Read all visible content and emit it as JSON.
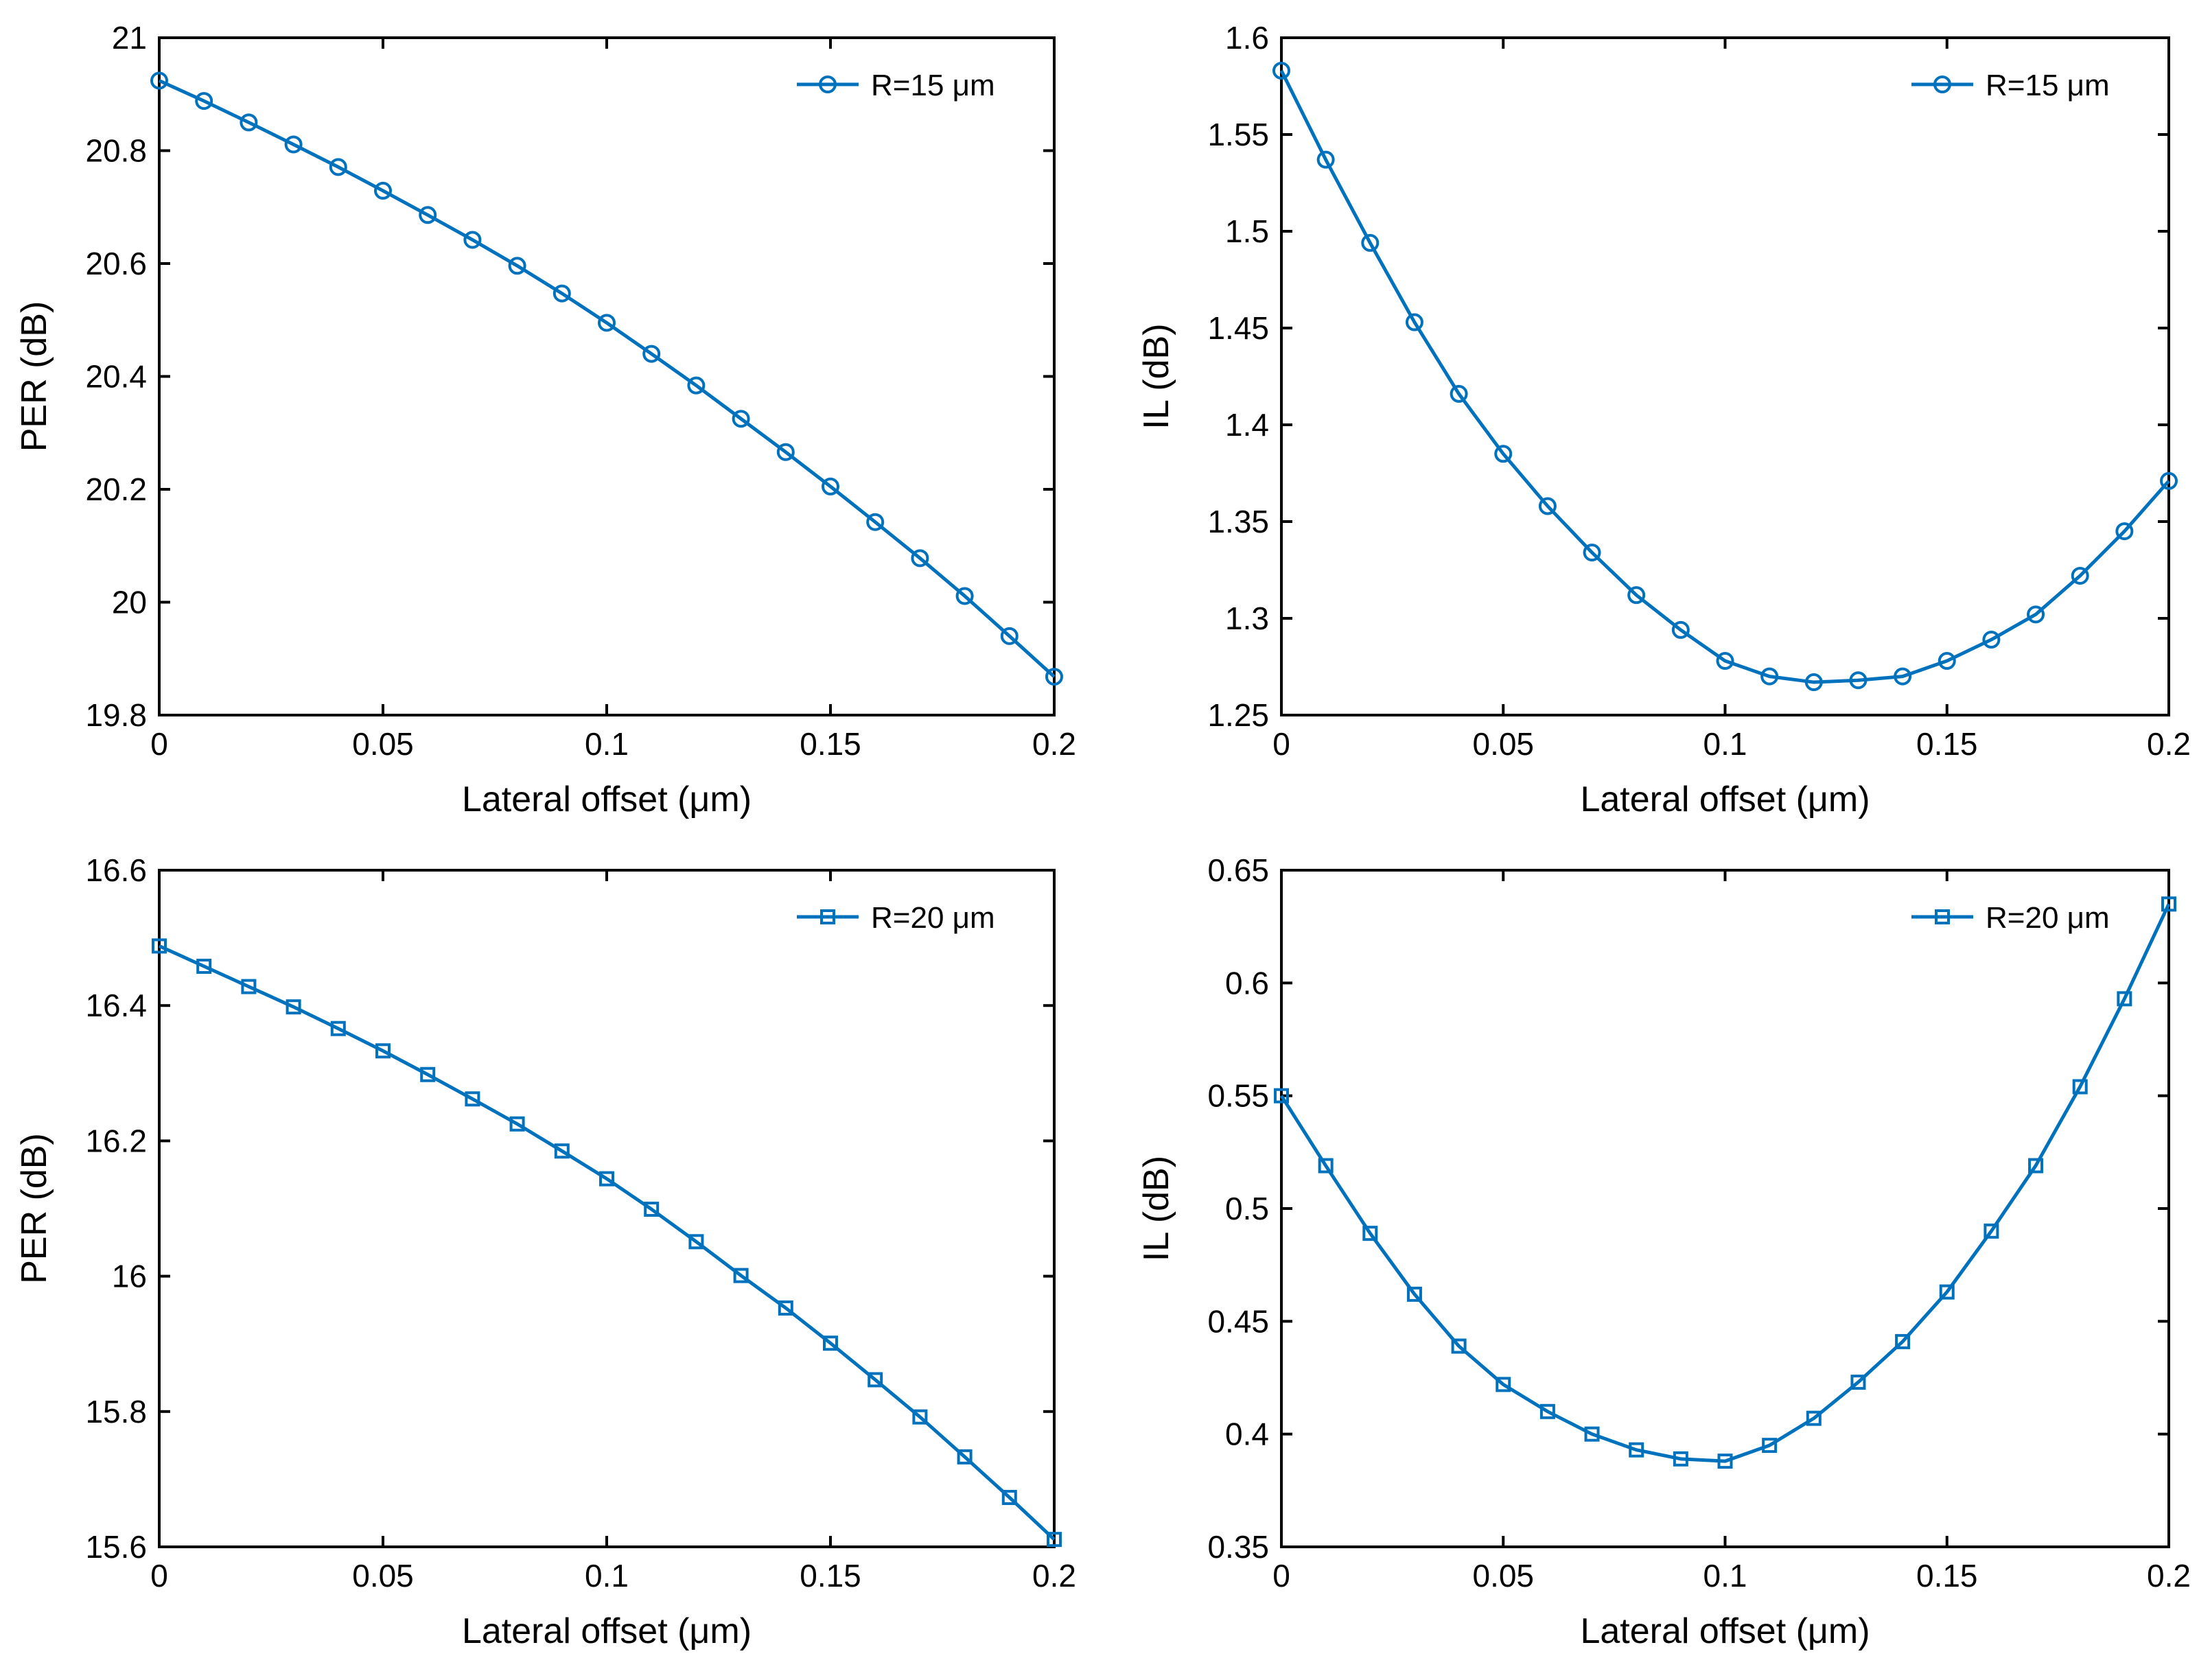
{
  "figure_title": "",
  "colors": {
    "series": "#0072BD",
    "axes": "#000000",
    "background": "#ffffff"
  },
  "chart_data": [
    {
      "type": "line",
      "marker": "circle",
      "xlabel": "Lateral offset (μm)",
      "ylabel": "PER (dB)",
      "xlim": [
        0,
        0.2
      ],
      "ylim": [
        19.8,
        21
      ],
      "xticks": [
        0,
        0.05,
        0.1,
        0.15,
        0.2
      ],
      "xtick_labels": [
        "0",
        "0.05",
        "0.1",
        "0.15",
        "0.2"
      ],
      "yticks": [
        19.8,
        20,
        20.2,
        20.4,
        20.6,
        20.8,
        21
      ],
      "ytick_labels": [
        "19.8",
        "20",
        "20.2",
        "20.4",
        "20.6",
        "20.8",
        "21"
      ],
      "legend": "top-right",
      "series": [
        {
          "name": "R=15 μm",
          "x": [
            0,
            0.01,
            0.02,
            0.03,
            0.04,
            0.05,
            0.06,
            0.07,
            0.08,
            0.09,
            0.1,
            0.11,
            0.12,
            0.13,
            0.14,
            0.15,
            0.16,
            0.17,
            0.18,
            0.19,
            0.2
          ],
          "y": [
            20.924,
            20.888,
            20.85,
            20.811,
            20.771,
            20.729,
            20.686,
            20.642,
            20.596,
            20.547,
            20.495,
            20.44,
            20.384,
            20.325,
            20.266,
            20.205,
            20.142,
            20.078,
            20.011,
            19.94,
            19.868
          ]
        }
      ]
    },
    {
      "type": "line",
      "marker": "circle",
      "xlabel": "Lateral offset (μm)",
      "ylabel": "IL (dB)",
      "xlim": [
        0,
        0.2
      ],
      "ylim": [
        1.25,
        1.6
      ],
      "xticks": [
        0,
        0.05,
        0.1,
        0.15,
        0.2
      ],
      "xtick_labels": [
        "0",
        "0.05",
        "0.1",
        "0.15",
        "0.2"
      ],
      "yticks": [
        1.25,
        1.3,
        1.35,
        1.4,
        1.45,
        1.5,
        1.55,
        1.6
      ],
      "ytick_labels": [
        "1.25",
        "1.3",
        "1.35",
        "1.4",
        "1.45",
        "1.5",
        "1.55",
        "1.6"
      ],
      "legend": "top-right",
      "series": [
        {
          "name": "R=15 μm",
          "x": [
            0,
            0.01,
            0.02,
            0.03,
            0.04,
            0.05,
            0.06,
            0.07,
            0.08,
            0.09,
            0.1,
            0.11,
            0.12,
            0.13,
            0.14,
            0.15,
            0.16,
            0.17,
            0.18,
            0.19,
            0.2
          ],
          "y": [
            1.583,
            1.537,
            1.494,
            1.453,
            1.416,
            1.385,
            1.358,
            1.334,
            1.312,
            1.294,
            1.278,
            1.27,
            1.267,
            1.268,
            1.27,
            1.278,
            1.289,
            1.302,
            1.322,
            1.345,
            1.371
          ]
        }
      ]
    },
    {
      "type": "line",
      "marker": "square",
      "xlabel": "Lateral offset (μm)",
      "ylabel": "PER (dB)",
      "xlim": [
        0,
        0.2
      ],
      "ylim": [
        15.6,
        16.6
      ],
      "xticks": [
        0,
        0.05,
        0.1,
        0.15,
        0.2
      ],
      "xtick_labels": [
        "0",
        "0.05",
        "0.1",
        "0.15",
        "0.2"
      ],
      "yticks": [
        15.6,
        15.8,
        16,
        16.2,
        16.4,
        16.6
      ],
      "ytick_labels": [
        "15.6",
        "15.8",
        "16",
        "16.2",
        "16.4",
        "16.6"
      ],
      "legend": "top-right",
      "series": [
        {
          "name": "R=20 μm",
          "x": [
            0,
            0.01,
            0.02,
            0.03,
            0.04,
            0.05,
            0.06,
            0.07,
            0.08,
            0.09,
            0.1,
            0.11,
            0.12,
            0.13,
            0.14,
            0.15,
            0.16,
            0.17,
            0.18,
            0.19,
            0.2
          ],
          "y": [
            16.488,
            16.458,
            16.428,
            16.398,
            16.366,
            16.333,
            16.298,
            16.262,
            16.225,
            16.185,
            16.144,
            16.099,
            16.051,
            16.001,
            15.953,
            15.901,
            15.847,
            15.792,
            15.733,
            15.673,
            15.611
          ]
        }
      ]
    },
    {
      "type": "line",
      "marker": "square",
      "xlabel": "Lateral offset (μm)",
      "ylabel": "IL (dB)",
      "xlim": [
        0,
        0.2
      ],
      "ylim": [
        0.35,
        0.65
      ],
      "xticks": [
        0,
        0.05,
        0.1,
        0.15,
        0.2
      ],
      "xtick_labels": [
        "0",
        "0.05",
        "0.1",
        "0.15",
        "0.2"
      ],
      "yticks": [
        0.35,
        0.4,
        0.45,
        0.5,
        0.55,
        0.6,
        0.65
      ],
      "ytick_labels": [
        "0.35",
        "0.4",
        "0.45",
        "0.5",
        "0.55",
        "0.6",
        "0.65"
      ],
      "legend": "top-right",
      "series": [
        {
          "name": "R=20 μm",
          "x": [
            0,
            0.01,
            0.02,
            0.03,
            0.04,
            0.05,
            0.06,
            0.07,
            0.08,
            0.09,
            0.1,
            0.11,
            0.12,
            0.13,
            0.14,
            0.15,
            0.16,
            0.17,
            0.18,
            0.19,
            0.2
          ],
          "y": [
            0.55,
            0.519,
            0.489,
            0.462,
            0.439,
            0.422,
            0.41,
            0.4,
            0.393,
            0.389,
            0.388,
            0.395,
            0.407,
            0.423,
            0.441,
            0.463,
            0.49,
            0.519,
            0.554,
            0.593,
            0.635
          ]
        }
      ]
    }
  ]
}
